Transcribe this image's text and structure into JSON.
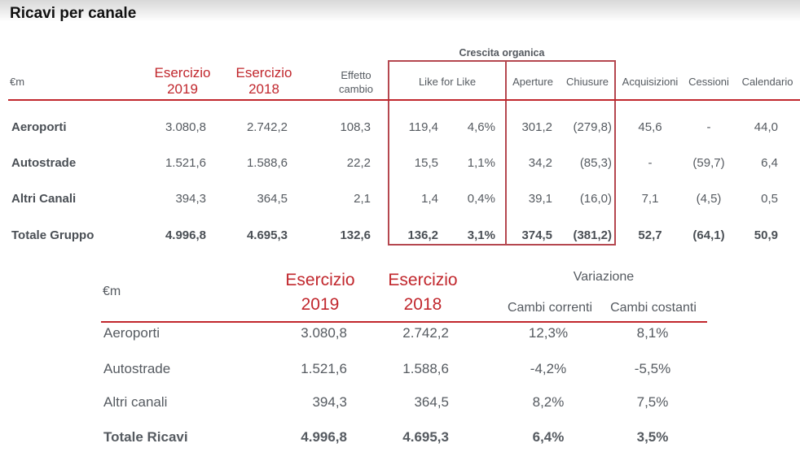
{
  "title": "Ricavi per canale",
  "colors": {
    "accent_red": "#c1272d",
    "box_border": "#b5474f",
    "text": "#555a60"
  },
  "table1": {
    "unit": "€m",
    "group_header": "Crescita organica",
    "columns": {
      "ex2019_l1": "Esercizio",
      "ex2019_l2": "2019",
      "ex2018_l1": "Esercizio",
      "ex2018_l2": "2018",
      "fx_l1": "Effetto",
      "fx_l2": "cambio",
      "lfl": "Like for Like",
      "aperture": "Aperture",
      "chiusure": "Chiusure",
      "acquisizioni": "Acquisizioni",
      "cessioni": "Cessioni",
      "calendario": "Calendario"
    },
    "rows": [
      {
        "label": "Aeroporti",
        "ex2019": "3.080,8",
        "ex2018": "2.742,2",
        "fx": "108,3",
        "lfl": "119,4",
        "lfl_pct": "4,6%",
        "aperture": "301,2",
        "chiusure": "(279,8)",
        "acquisizioni": "45,6",
        "cessioni": "-",
        "calendario": "44,0"
      },
      {
        "label": "Autostrade",
        "ex2019": "1.521,6",
        "ex2018": "1.588,6",
        "fx": "22,2",
        "lfl": "15,5",
        "lfl_pct": "1,1%",
        "aperture": "34,2",
        "chiusure": "(85,3)",
        "acquisizioni": "-",
        "cessioni": "(59,7)",
        "calendario": "6,4"
      },
      {
        "label": "Altri Canali",
        "ex2019": "394,3",
        "ex2018": "364,5",
        "fx": "2,1",
        "lfl": "1,4",
        "lfl_pct": "0,4%",
        "aperture": "39,1",
        "chiusure": "(16,0)",
        "acquisizioni": "7,1",
        "cessioni": "(4,5)",
        "calendario": "0,5"
      },
      {
        "label": "Totale Gruppo",
        "ex2019": "4.996,8",
        "ex2018": "4.695,3",
        "fx": "132,6",
        "lfl": "136,2",
        "lfl_pct": "3,1%",
        "aperture": "374,5",
        "chiusure": "(381,2)",
        "acquisizioni": "52,7",
        "cessioni": "(64,1)",
        "calendario": "50,9"
      }
    ]
  },
  "table2": {
    "unit": "€m",
    "columns": {
      "ex2019_l1": "Esercizio",
      "ex2019_l2": "2019",
      "ex2018_l1": "Esercizio",
      "ex2018_l2": "2018",
      "variazione": "Variazione",
      "correnti": "Cambi correnti",
      "costanti": "Cambi costanti"
    },
    "rows": [
      {
        "label": "Aeroporti",
        "ex2019": "3.080,8",
        "ex2018": "2.742,2",
        "correnti": "12,3%",
        "costanti": "8,1%"
      },
      {
        "label": "Autostrade",
        "ex2019": "1.521,6",
        "ex2018": "1.588,6",
        "correnti": "-4,2%",
        "costanti": "-5,5%"
      },
      {
        "label": "Altri canali",
        "ex2019": "394,3",
        "ex2018": "364,5",
        "correnti": "8,2%",
        "costanti": "7,5%"
      },
      {
        "label": "Totale Ricavi",
        "ex2019": "4.996,8",
        "ex2018": "4.695,3",
        "correnti": "6,4%",
        "costanti": "3,5%"
      }
    ]
  }
}
